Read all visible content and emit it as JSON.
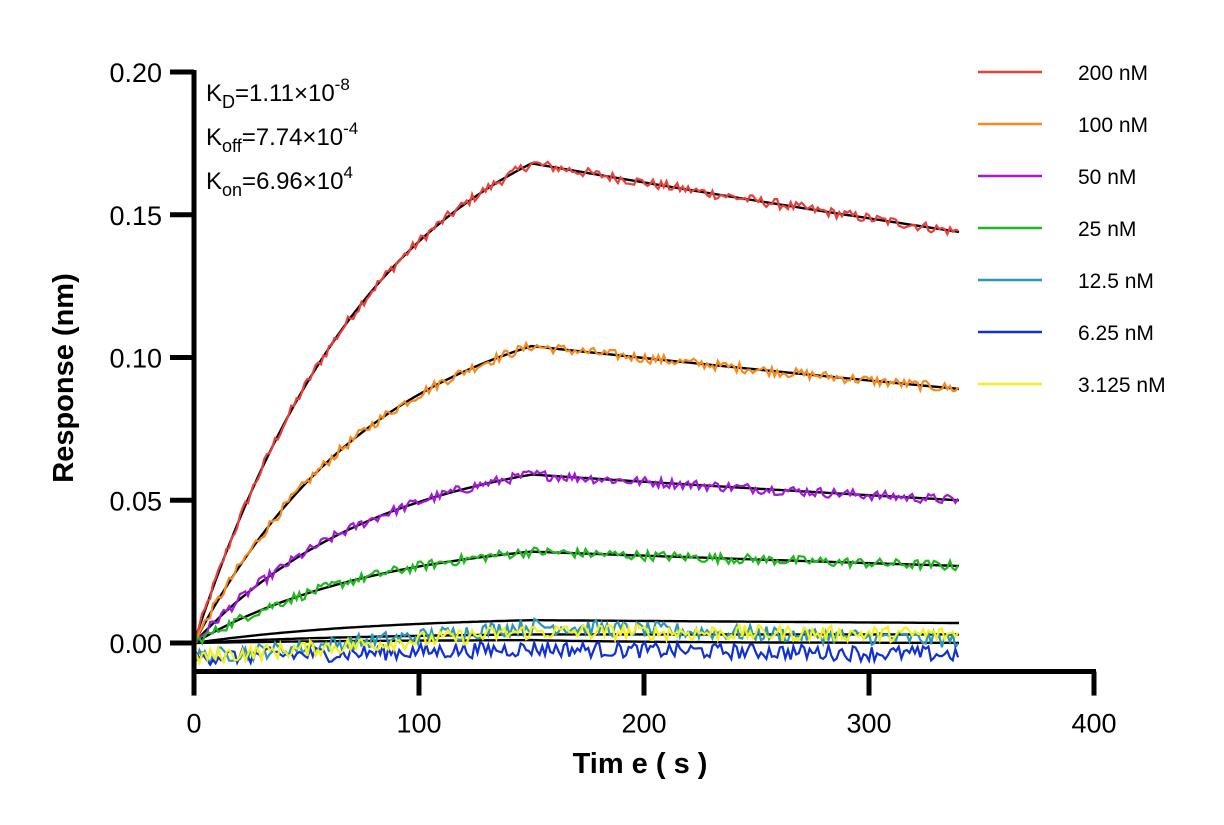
{
  "chart_data": {
    "type": "line",
    "xlabel": "Tim e ( s )",
    "ylabel": "Response (nm)",
    "xlim": [
      0,
      400
    ],
    "ylim": [
      -0.01,
      0.2
    ],
    "x_ticks": [
      "0",
      "100",
      "200",
      "300",
      "400"
    ],
    "y_ticks": [
      "0.00",
      "0.05",
      "0.10",
      "0.15",
      "0.20"
    ],
    "annotations": [
      {
        "symbol": "K",
        "sub": "D",
        "text": "=1.11×10",
        "sup": "-8"
      },
      {
        "symbol": "K",
        "sub": "off",
        "text": "=7.74×10",
        "sup": "-4"
      },
      {
        "symbol": "K",
        "sub": "on",
        "text": "=6.96×10",
        "sup": "4"
      }
    ],
    "association_end": 150,
    "dissociation_end": 340,
    "series": [
      {
        "name": "200 nM",
        "color": "#e8413c",
        "plateau": 0.168,
        "end": 0.144
      },
      {
        "name": "100 nM",
        "color": "#f78a1d",
        "plateau": 0.104,
        "end": 0.089
      },
      {
        "name": "50 nM",
        "color": "#a21ad6",
        "plateau": 0.059,
        "end": 0.05
      },
      {
        "name": "25 nM",
        "color": "#1fb81f",
        "plateau": 0.032,
        "end": 0.027
      },
      {
        "name": "12.5 nM",
        "color": "#2a97b8",
        "plateau": 0.006,
        "end": 0.001
      },
      {
        "name": "6.25 nM",
        "color": "#1030d6",
        "plateau": -0.002,
        "end": -0.004
      },
      {
        "name": "3.125 nM",
        "color": "#f2f21a",
        "plateau": 0.004,
        "end": 0.003
      }
    ],
    "fit_lines": [
      {
        "plateau": 0.168,
        "end": 0.144
      },
      {
        "plateau": 0.104,
        "end": 0.089
      },
      {
        "plateau": 0.059,
        "end": 0.05
      },
      {
        "plateau": 0.032,
        "end": 0.027
      },
      {
        "plateau": 0.008,
        "end": 0.007
      },
      {
        "plateau": 0.003,
        "end": 0.003
      },
      {
        "plateau": 0.001,
        "end": 0.0
      }
    ],
    "legend_position": "top-right",
    "grid": false
  }
}
